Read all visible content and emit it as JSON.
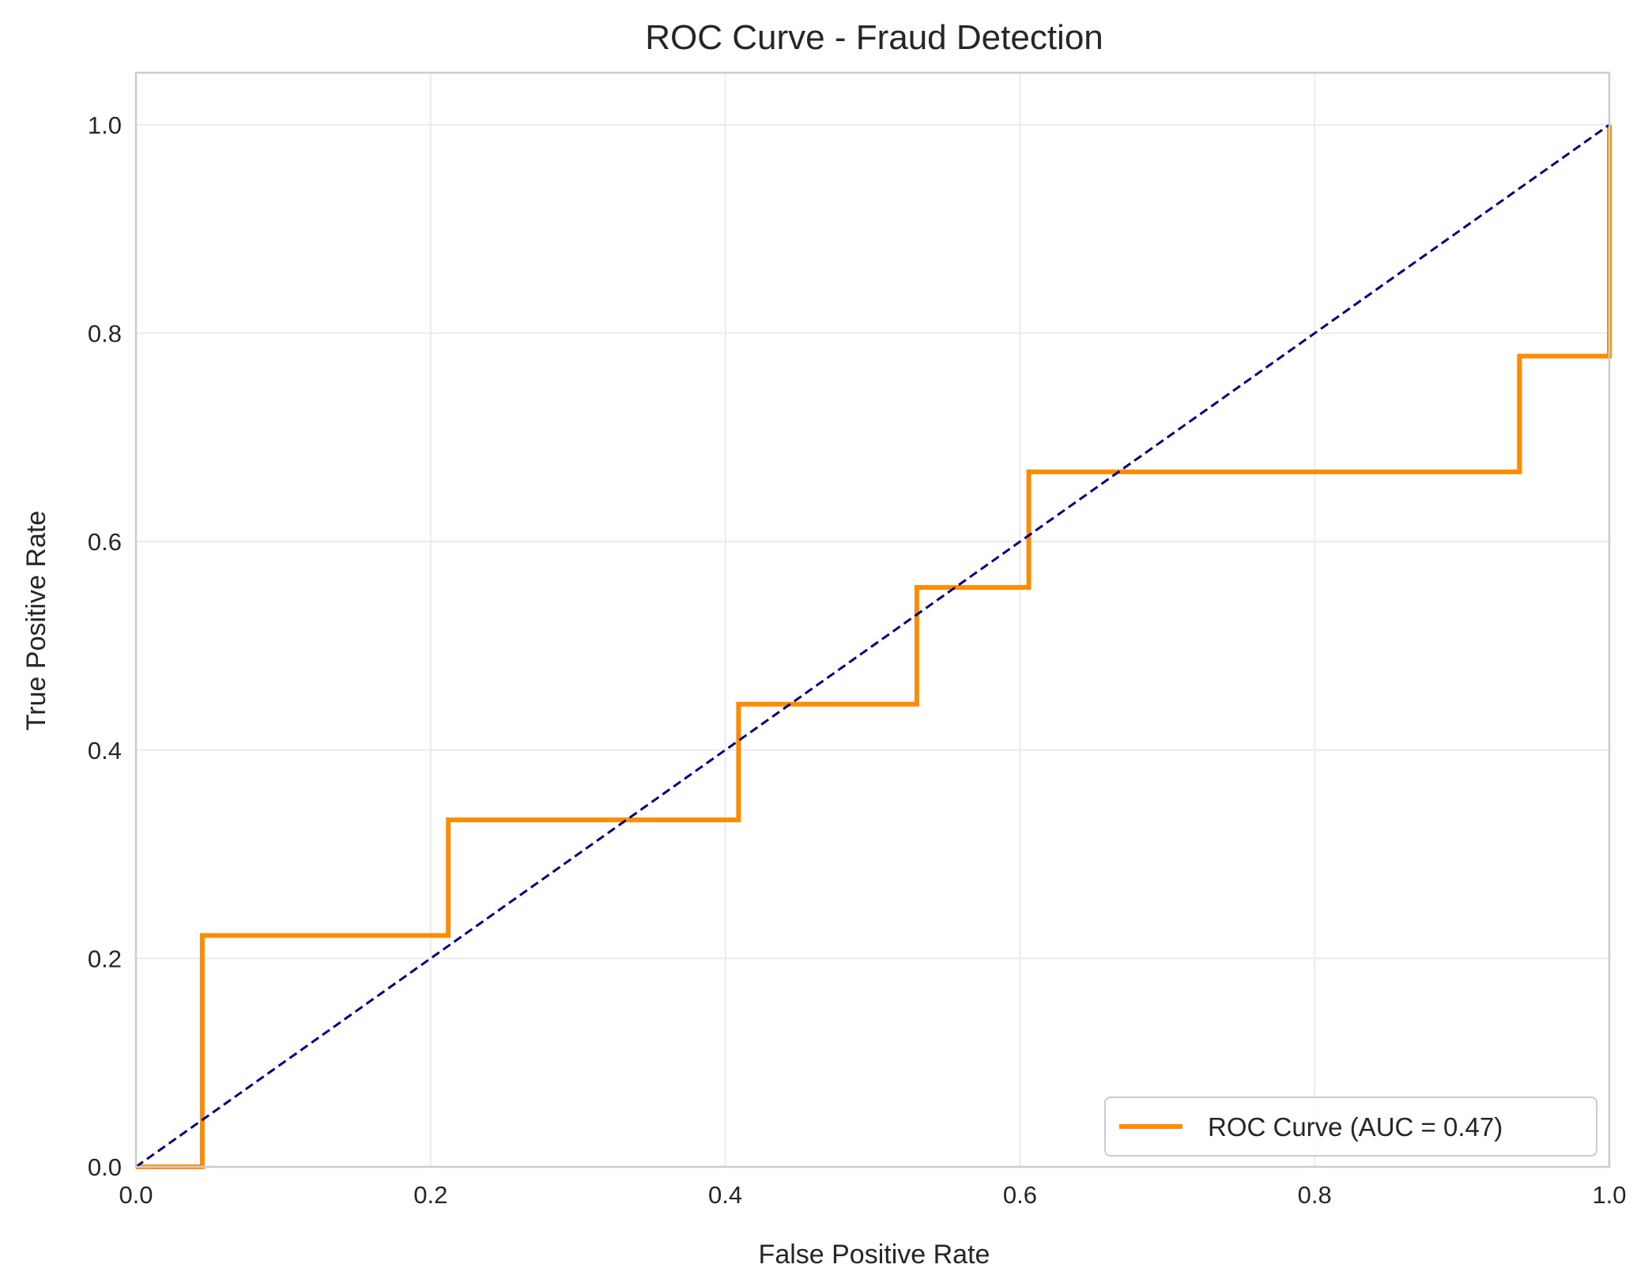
{
  "chart_data": {
    "type": "line",
    "title": "ROC Curve - Fraud Detection",
    "xlabel": "False Positive Rate",
    "ylabel": "True Positive Rate",
    "xlim": [
      0.0,
      1.0
    ],
    "ylim": [
      0.0,
      1.05
    ],
    "xticks": [
      "0.0",
      "0.2",
      "0.4",
      "0.6",
      "0.8",
      "1.0"
    ],
    "yticks": [
      "0.0",
      "0.2",
      "0.4",
      "0.6",
      "0.8",
      "1.0"
    ],
    "grid": true,
    "legend_position": "lower right",
    "series": [
      {
        "name": "ROC Curve (AUC = 0.47)",
        "color": "#ff8c00",
        "style": "solid",
        "x": [
          0.0,
          0.045,
          0.045,
          0.212,
          0.212,
          0.409,
          0.409,
          0.53,
          0.53,
          0.606,
          0.606,
          0.939,
          0.939,
          1.0,
          1.0
        ],
        "y": [
          0.0,
          0.0,
          0.222,
          0.222,
          0.333,
          0.333,
          0.444,
          0.444,
          0.556,
          0.556,
          0.667,
          0.667,
          0.778,
          0.778,
          1.0
        ]
      },
      {
        "color": "#000080",
        "style": "dashed",
        "x": [
          0.0,
          1.0
        ],
        "y": [
          0.0,
          1.0
        ]
      }
    ]
  }
}
